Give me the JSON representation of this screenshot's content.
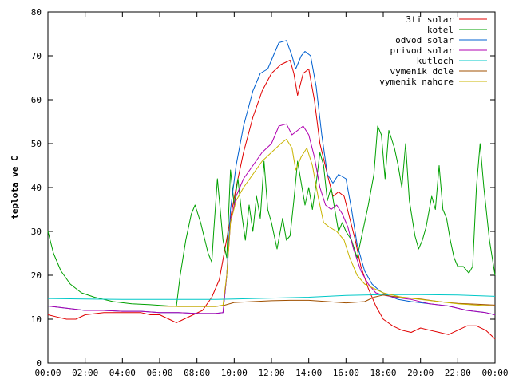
{
  "chart_data": {
    "type": "line",
    "title": "",
    "xlabel": "",
    "ylabel": "teplota ve C",
    "xlim": [
      0,
      24
    ],
    "ylim": [
      0,
      80
    ],
    "x_ticks": [
      0,
      2,
      4,
      6,
      8,
      10,
      12,
      14,
      16,
      18,
      20,
      22,
      24
    ],
    "x_tick_labels": [
      "00:00",
      "02:00",
      "04:00",
      "06:00",
      "08:00",
      "10:00",
      "12:00",
      "14:00",
      "16:00",
      "18:00",
      "20:00",
      "22:00",
      "00:00"
    ],
    "y_ticks": [
      0,
      10,
      20,
      30,
      40,
      50,
      60,
      70,
      80
    ],
    "y_tick_labels": [
      "0",
      "10",
      "20",
      "30",
      "40",
      "50",
      "60",
      "70",
      "80"
    ],
    "grid": false,
    "legend_position": "top-right",
    "series": [
      {
        "name": "3ti solar",
        "color": "#e00000",
        "points": [
          [
            0,
            11
          ],
          [
            0.5,
            10.5
          ],
          [
            1,
            10
          ],
          [
            1.5,
            10
          ],
          [
            2,
            11
          ],
          [
            3,
            11.5
          ],
          [
            4,
            11.5
          ],
          [
            5,
            11.5
          ],
          [
            5.5,
            11
          ],
          [
            6,
            11
          ],
          [
            6.5,
            10
          ],
          [
            6.9,
            9.2
          ],
          [
            7.3,
            10
          ],
          [
            7.8,
            11
          ],
          [
            8.3,
            12
          ],
          [
            8.8,
            15
          ],
          [
            9.2,
            19
          ],
          [
            9.5,
            26
          ],
          [
            9.8,
            33
          ],
          [
            10.1,
            40
          ],
          [
            10.5,
            48
          ],
          [
            11,
            56
          ],
          [
            11.5,
            62
          ],
          [
            12,
            66
          ],
          [
            12.5,
            68
          ],
          [
            13,
            69
          ],
          [
            13.2,
            66
          ],
          [
            13.4,
            61
          ],
          [
            13.7,
            66
          ],
          [
            14,
            67
          ],
          [
            14.3,
            60
          ],
          [
            14.6,
            50
          ],
          [
            15,
            43
          ],
          [
            15.3,
            38
          ],
          [
            15.6,
            39
          ],
          [
            15.9,
            38
          ],
          [
            16.2,
            33
          ],
          [
            16.5,
            28
          ],
          [
            16.8,
            22
          ],
          [
            17.2,
            17
          ],
          [
            17.6,
            13
          ],
          [
            18,
            10
          ],
          [
            18.5,
            8.5
          ],
          [
            19,
            7.5
          ],
          [
            19.5,
            7
          ],
          [
            20,
            8
          ],
          [
            20.5,
            7.5
          ],
          [
            21,
            7
          ],
          [
            21.5,
            6.5
          ],
          [
            22,
            7.5
          ],
          [
            22.5,
            8.5
          ],
          [
            23,
            8.5
          ],
          [
            23.5,
            7.5
          ],
          [
            24,
            5.5
          ]
        ]
      },
      {
        "name": "kotel",
        "color": "#00a000",
        "points": [
          [
            0,
            30
          ],
          [
            0.3,
            25
          ],
          [
            0.7,
            21
          ],
          [
            1.2,
            18
          ],
          [
            1.8,
            16
          ],
          [
            2.5,
            15
          ],
          [
            3.5,
            14
          ],
          [
            4.5,
            13.5
          ],
          [
            5.5,
            13.3
          ],
          [
            6.5,
            13
          ],
          [
            6.9,
            13
          ],
          [
            7.1,
            20
          ],
          [
            7.4,
            28
          ],
          [
            7.7,
            34
          ],
          [
            7.9,
            36
          ],
          [
            8.2,
            32
          ],
          [
            8.6,
            25
          ],
          [
            8.8,
            23
          ],
          [
            8.9,
            30
          ],
          [
            9.1,
            42
          ],
          [
            9.4,
            28
          ],
          [
            9.6,
            24
          ],
          [
            9.8,
            44
          ],
          [
            10,
            36
          ],
          [
            10.2,
            42
          ],
          [
            10.4,
            34
          ],
          [
            10.6,
            28
          ],
          [
            10.8,
            36
          ],
          [
            11,
            30
          ],
          [
            11.2,
            38
          ],
          [
            11.4,
            33
          ],
          [
            11.6,
            46
          ],
          [
            11.8,
            35
          ],
          [
            12,
            32
          ],
          [
            12.3,
            26
          ],
          [
            12.6,
            33
          ],
          [
            12.8,
            28
          ],
          [
            13,
            29
          ],
          [
            13.2,
            37
          ],
          [
            13.4,
            46
          ],
          [
            13.6,
            41
          ],
          [
            13.8,
            36
          ],
          [
            14,
            40
          ],
          [
            14.2,
            35
          ],
          [
            14.4,
            41
          ],
          [
            14.6,
            48
          ],
          [
            14.8,
            45
          ],
          [
            15,
            37
          ],
          [
            15.2,
            40
          ],
          [
            15.4,
            35
          ],
          [
            15.6,
            30
          ],
          [
            15.8,
            32
          ],
          [
            16,
            30
          ],
          [
            16.3,
            28
          ],
          [
            16.6,
            24
          ],
          [
            16.9,
            30
          ],
          [
            17.2,
            36
          ],
          [
            17.5,
            43
          ],
          [
            17.7,
            54
          ],
          [
            17.9,
            52
          ],
          [
            18.1,
            42
          ],
          [
            18.3,
            53
          ],
          [
            18.6,
            49
          ],
          [
            18.8,
            45
          ],
          [
            19,
            40
          ],
          [
            19.2,
            50
          ],
          [
            19.4,
            37
          ],
          [
            19.7,
            29
          ],
          [
            19.9,
            26
          ],
          [
            20.1,
            28
          ],
          [
            20.3,
            31
          ],
          [
            20.6,
            38
          ],
          [
            20.8,
            35
          ],
          [
            21,
            45
          ],
          [
            21.2,
            35
          ],
          [
            21.4,
            33
          ],
          [
            21.6,
            28
          ],
          [
            21.8,
            24
          ],
          [
            22,
            22
          ],
          [
            22.3,
            22
          ],
          [
            22.6,
            20.5
          ],
          [
            22.8,
            22
          ],
          [
            23,
            40
          ],
          [
            23.2,
            50
          ],
          [
            23.4,
            40
          ],
          [
            23.7,
            28
          ],
          [
            24,
            20
          ]
        ]
      },
      {
        "name": "odvod solar",
        "color": "#0060d0",
        "points": [
          [
            0,
            13
          ],
          [
            1,
            12.5
          ],
          [
            2,
            12
          ],
          [
            3,
            12
          ],
          [
            4,
            11.8
          ],
          [
            5,
            11.8
          ],
          [
            6,
            11.5
          ],
          [
            7,
            11.5
          ],
          [
            8,
            11.3
          ],
          [
            9,
            11.3
          ],
          [
            9.4,
            11.5
          ],
          [
            9.6,
            20
          ],
          [
            9.8,
            35
          ],
          [
            10.1,
            45
          ],
          [
            10.5,
            54
          ],
          [
            11,
            62
          ],
          [
            11.4,
            66
          ],
          [
            11.8,
            67
          ],
          [
            12.1,
            70
          ],
          [
            12.4,
            73
          ],
          [
            12.8,
            73.5
          ],
          [
            13.1,
            70
          ],
          [
            13.3,
            67
          ],
          [
            13.6,
            70
          ],
          [
            13.8,
            71
          ],
          [
            14.1,
            70
          ],
          [
            14.4,
            63
          ],
          [
            14.7,
            52
          ],
          [
            15,
            43
          ],
          [
            15.3,
            41
          ],
          [
            15.6,
            43
          ],
          [
            16,
            42
          ],
          [
            16.3,
            35
          ],
          [
            16.6,
            27
          ],
          [
            17,
            21
          ],
          [
            17.4,
            18
          ],
          [
            17.8,
            16.5
          ],
          [
            18.2,
            15.5
          ],
          [
            18.8,
            14.5
          ],
          [
            19.5,
            14
          ],
          [
            20.5,
            13.5
          ],
          [
            21.5,
            13
          ],
          [
            22.5,
            12
          ],
          [
            23.5,
            11.5
          ],
          [
            24,
            11
          ]
        ]
      },
      {
        "name": "privod solar",
        "color": "#b000b0",
        "points": [
          [
            0,
            13
          ],
          [
            1,
            12.5
          ],
          [
            2,
            12
          ],
          [
            3,
            12
          ],
          [
            4,
            11.8
          ],
          [
            5,
            11.8
          ],
          [
            6,
            11.5
          ],
          [
            7,
            11.5
          ],
          [
            8,
            11.3
          ],
          [
            9,
            11.3
          ],
          [
            9.4,
            11.5
          ],
          [
            9.6,
            20
          ],
          [
            9.8,
            32
          ],
          [
            10.1,
            38
          ],
          [
            10.5,
            42
          ],
          [
            11,
            45
          ],
          [
            11.5,
            48
          ],
          [
            12,
            50
          ],
          [
            12.4,
            54
          ],
          [
            12.8,
            54.5
          ],
          [
            13.1,
            52
          ],
          [
            13.4,
            53
          ],
          [
            13.7,
            54
          ],
          [
            14,
            52
          ],
          [
            14.3,
            47
          ],
          [
            14.6,
            40
          ],
          [
            14.9,
            36
          ],
          [
            15.2,
            35
          ],
          [
            15.5,
            36
          ],
          [
            15.8,
            34
          ],
          [
            16.1,
            31
          ],
          [
            16.4,
            26
          ],
          [
            16.8,
            21
          ],
          [
            17.2,
            18
          ],
          [
            17.6,
            16
          ],
          [
            18,
            15.5
          ],
          [
            18.6,
            15
          ],
          [
            19.5,
            14.5
          ],
          [
            20.5,
            13.5
          ],
          [
            21.5,
            13
          ],
          [
            22.5,
            12
          ],
          [
            23.5,
            11.5
          ],
          [
            24,
            11
          ]
        ]
      },
      {
        "name": "kutloch",
        "color": "#00c8c8",
        "points": [
          [
            0,
            14.7
          ],
          [
            2,
            14.6
          ],
          [
            4,
            14.5
          ],
          [
            6,
            14.5
          ],
          [
            7,
            14.5
          ],
          [
            8,
            14.5
          ],
          [
            9,
            14.5
          ],
          [
            10,
            14.6
          ],
          [
            12,
            14.8
          ],
          [
            14,
            15
          ],
          [
            16,
            15.4
          ],
          [
            18,
            15.6
          ],
          [
            20,
            15.6
          ],
          [
            22,
            15.5
          ],
          [
            24,
            15.2
          ]
        ]
      },
      {
        "name": "vymenik dole",
        "color": "#a05000",
        "points": [
          [
            0,
            13
          ],
          [
            2,
            13
          ],
          [
            4,
            13
          ],
          [
            6,
            13
          ],
          [
            7,
            12.9
          ],
          [
            8,
            12.9
          ],
          [
            9,
            12.9
          ],
          [
            9.5,
            13.2
          ],
          [
            10,
            13.8
          ],
          [
            11,
            14
          ],
          [
            12,
            14.2
          ],
          [
            13,
            14.3
          ],
          [
            14,
            14.3
          ],
          [
            15,
            14
          ],
          [
            16,
            13.7
          ],
          [
            17,
            14
          ],
          [
            17.5,
            15
          ],
          [
            18,
            15.5
          ],
          [
            18.5,
            15.2
          ],
          [
            19,
            15
          ],
          [
            20,
            14.6
          ],
          [
            21,
            14
          ],
          [
            22,
            13.6
          ],
          [
            23,
            13.4
          ],
          [
            24,
            13.2
          ]
        ]
      },
      {
        "name": "vymenik nahore",
        "color": "#c8b400",
        "points": [
          [
            0,
            13
          ],
          [
            2,
            13
          ],
          [
            4,
            13
          ],
          [
            6,
            13
          ],
          [
            7,
            12.9
          ],
          [
            8,
            12.9
          ],
          [
            9,
            12.9
          ],
          [
            9.4,
            13.2
          ],
          [
            9.6,
            20
          ],
          [
            9.8,
            32
          ],
          [
            10.1,
            37
          ],
          [
            10.5,
            40
          ],
          [
            11,
            43
          ],
          [
            11.5,
            46
          ],
          [
            12,
            48
          ],
          [
            12.5,
            50
          ],
          [
            12.8,
            51
          ],
          [
            13.1,
            49
          ],
          [
            13.3,
            44
          ],
          [
            13.6,
            47
          ],
          [
            13.9,
            49
          ],
          [
            14.2,
            45
          ],
          [
            14.5,
            38
          ],
          [
            14.8,
            32
          ],
          [
            15.1,
            31
          ],
          [
            15.5,
            30
          ],
          [
            15.9,
            28
          ],
          [
            16.2,
            24
          ],
          [
            16.6,
            20
          ],
          [
            17,
            18
          ],
          [
            17.5,
            17
          ],
          [
            18,
            16
          ],
          [
            18.5,
            15.5
          ],
          [
            19,
            15
          ],
          [
            20,
            14.5
          ],
          [
            21,
            14
          ],
          [
            22,
            13.5
          ],
          [
            23,
            13.2
          ],
          [
            24,
            13
          ]
        ]
      }
    ]
  }
}
